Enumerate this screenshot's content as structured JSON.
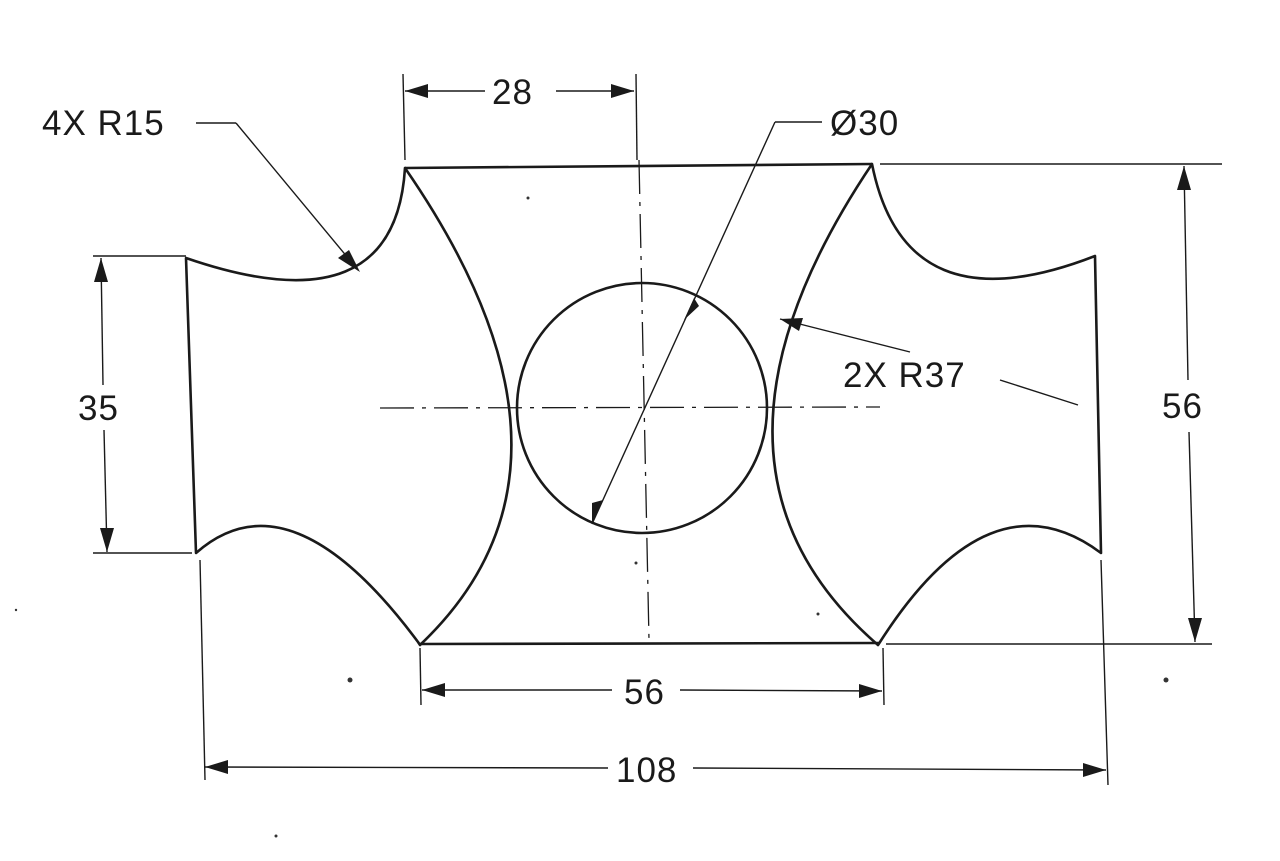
{
  "dimensions": {
    "top_width": "28",
    "diameter_circle": "Ø30",
    "corner_radii": "4X R15",
    "arc_radii": "2X R37",
    "left_height": "35",
    "right_height": "56",
    "bottom_inner": "56",
    "bottom_overall": "108"
  }
}
